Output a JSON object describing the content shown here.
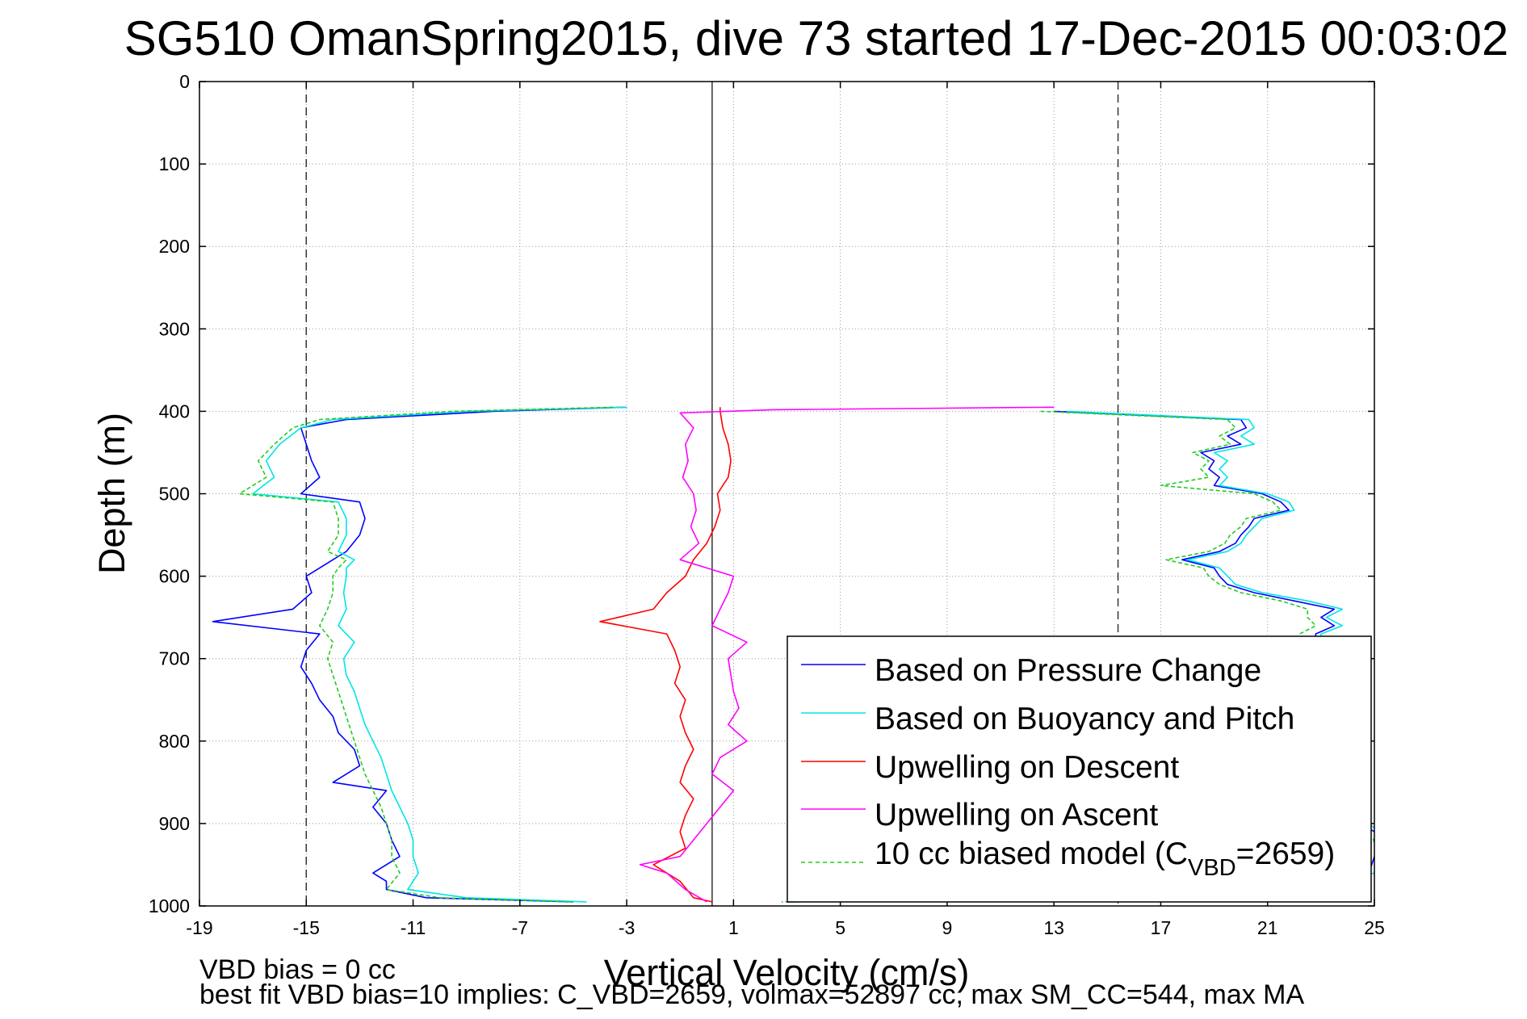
{
  "chart_data": {
    "type": "line",
    "title": "SG510 OmanSpring2015, dive 73 started 17-Dec-2015 00:03:02",
    "xlabel": "Vertical Velocity (cm/s)",
    "ylabel": "Depth (m)",
    "xlim": [
      -19,
      25
    ],
    "ylim": [
      0,
      1000
    ],
    "y_reversed": true,
    "grid": true,
    "x_ticks": [
      "-19",
      "-15",
      "-11",
      "-7",
      "-3",
      "1",
      "5",
      "9",
      "13",
      "17",
      "21",
      "25"
    ],
    "y_ticks": [
      "0",
      "100",
      "200",
      "300",
      "400",
      "500",
      "600",
      "700",
      "800",
      "900",
      "1000"
    ],
    "reference_lines": {
      "dashed_x": [
        -15,
        15.4
      ],
      "solid_x": [
        0.2
      ]
    },
    "legend_position": "bottom-right",
    "series": [
      {
        "name": "Based on Pressure Change",
        "color": "#0000ff",
        "descent": {
          "depth": [
            395,
            400,
            410,
            420,
            440,
            460,
            480,
            500,
            510,
            530,
            550,
            570,
            580,
            590,
            600,
            620,
            640,
            655,
            670,
            690,
            710,
            730,
            750,
            770,
            790,
            810,
            830,
            850,
            860,
            880,
            900,
            920,
            940,
            960,
            970,
            980,
            990,
            995
          ],
          "velocity": [
            -3.0,
            -8.0,
            -13.5,
            -15.2,
            -15.0,
            -14.8,
            -14.5,
            -15.2,
            -13.0,
            -12.8,
            -13.0,
            -13.5,
            -14.0,
            -14.5,
            -15.0,
            -14.8,
            -15.5,
            -18.5,
            -14.5,
            -15.0,
            -15.2,
            -14.8,
            -14.5,
            -14.0,
            -13.8,
            -13.2,
            -13.0,
            -14.0,
            -12.0,
            -12.5,
            -12.0,
            -11.8,
            -11.5,
            -12.5,
            -12.0,
            -12.0,
            -10.5,
            -5.0
          ]
        },
        "ascent": {
          "depth": [
            400,
            410,
            420,
            430,
            440,
            450,
            460,
            470,
            480,
            490,
            500,
            510,
            520,
            530,
            540,
            550,
            560,
            570,
            580,
            590,
            600,
            610,
            620,
            630,
            640,
            650,
            660,
            670,
            680,
            690,
            700,
            720,
            740,
            760,
            780,
            800,
            820,
            840,
            860,
            880,
            900,
            920,
            940,
            960,
            975,
            985,
            990,
            995
          ],
          "velocity": [
            13.0,
            20.0,
            20.2,
            19.5,
            20.0,
            18.5,
            19.0,
            18.8,
            19.2,
            19.0,
            20.8,
            21.5,
            21.8,
            20.5,
            20.3,
            20.0,
            19.8,
            19.2,
            17.8,
            19.0,
            19.2,
            19.5,
            20.5,
            22.0,
            23.5,
            23.0,
            23.5,
            22.8,
            22.8,
            23.0,
            22.5,
            22.2,
            22.0,
            21.9,
            21.8,
            22.0,
            22.2,
            22.5,
            23.2,
            23.5,
            24.5,
            25.5,
            25.0,
            24.8,
            23.0,
            19.0,
            12.0,
            3.0
          ]
        }
      },
      {
        "name": "Based on Buoyancy and Pitch",
        "color": "#00e5e5",
        "descent": {
          "depth": [
            395,
            400,
            410,
            420,
            440,
            460,
            480,
            500,
            510,
            530,
            550,
            570,
            580,
            590,
            600,
            620,
            640,
            660,
            680,
            700,
            720,
            740,
            760,
            780,
            800,
            820,
            840,
            860,
            880,
            900,
            920,
            940,
            960,
            980,
            990,
            995
          ],
          "velocity": [
            -3.0,
            -9.0,
            -14.0,
            -15.2,
            -16.0,
            -16.5,
            -16.2,
            -17.0,
            -13.8,
            -13.5,
            -13.5,
            -13.8,
            -13.2,
            -13.5,
            -13.5,
            -13.6,
            -13.5,
            -13.8,
            -13.2,
            -13.6,
            -13.5,
            -13.2,
            -13.0,
            -12.8,
            -12.5,
            -12.2,
            -12.0,
            -11.8,
            -11.5,
            -11.2,
            -11.0,
            -11.0,
            -10.8,
            -11.2,
            -9.0,
            -4.5
          ]
        },
        "ascent": {
          "depth": [
            400,
            410,
            420,
            430,
            440,
            450,
            460,
            470,
            480,
            490,
            500,
            510,
            520,
            530,
            540,
            550,
            560,
            570,
            580,
            590,
            600,
            610,
            620,
            630,
            640,
            650,
            660,
            670,
            680,
            690,
            700,
            720,
            740,
            760,
            780,
            800,
            820,
            840,
            860,
            880,
            900,
            920,
            940,
            960,
            975,
            985,
            990,
            995
          ],
          "velocity": [
            13.5,
            20.3,
            20.5,
            20.0,
            20.5,
            19.0,
            19.5,
            19.2,
            19.5,
            19.2,
            21.0,
            21.8,
            22.0,
            20.8,
            20.5,
            20.2,
            20.0,
            19.5,
            18.0,
            19.2,
            19.5,
            19.8,
            20.8,
            22.5,
            23.8,
            23.2,
            23.8,
            23.0,
            23.0,
            23.2,
            22.8,
            22.5,
            22.3,
            22.1,
            22.0,
            22.2,
            22.5,
            22.8,
            23.5,
            23.8,
            24.8,
            25.5,
            25.2,
            25.0,
            23.2,
            19.2,
            12.2,
            3.2
          ]
        }
      },
      {
        "name": "Upwelling on Descent",
        "color": "#ff0000",
        "descent": {
          "depth": [
            395,
            400,
            420,
            440,
            460,
            480,
            500,
            520,
            540,
            560,
            580,
            600,
            620,
            640,
            655,
            670,
            690,
            710,
            730,
            750,
            770,
            790,
            810,
            830,
            850,
            870,
            890,
            910,
            930,
            950,
            970,
            990,
            995
          ],
          "velocity": [
            0.5,
            0.5,
            0.6,
            0.8,
            0.9,
            0.8,
            0.4,
            0.5,
            0.3,
            0.0,
            -0.5,
            -0.8,
            -1.5,
            -2.0,
            -4.0,
            -1.5,
            -1.2,
            -1.0,
            -1.2,
            -0.8,
            -1.0,
            -0.8,
            -0.5,
            -0.8,
            -1.0,
            -0.5,
            -0.8,
            -1.0,
            -0.8,
            -2.0,
            -1.0,
            -0.5,
            0.2
          ]
        }
      },
      {
        "name": "Upwelling on Ascent",
        "color": "#ff00ff",
        "ascent": {
          "depth": [
            395,
            398,
            402,
            420,
            440,
            460,
            480,
            500,
            520,
            540,
            560,
            580,
            600,
            620,
            640,
            660,
            680,
            700,
            720,
            740,
            760,
            780,
            800,
            820,
            840,
            860,
            880,
            900,
            920,
            940,
            950,
            960,
            980,
            995
          ],
          "velocity": [
            13.0,
            2.5,
            -1.0,
            -0.5,
            -0.8,
            -0.7,
            -0.9,
            -0.5,
            -0.4,
            -0.6,
            -0.3,
            -1.0,
            1.0,
            0.8,
            0.5,
            0.2,
            1.5,
            0.8,
            0.9,
            1.0,
            1.2,
            0.8,
            1.5,
            0.5,
            0.2,
            1.0,
            0.5,
            0.0,
            -0.5,
            -1.0,
            -2.5,
            -1.5,
            -0.8,
            0.0
          ]
        }
      },
      {
        "name": "10 cc biased model (C_VBD=2659)",
        "color": "#22cc22",
        "descent": {
          "depth": [
            395,
            400,
            410,
            420,
            440,
            460,
            480,
            500,
            510,
            530,
            550,
            570,
            580,
            590,
            600,
            620,
            640,
            660,
            680,
            700,
            720,
            740,
            760,
            780,
            800,
            820,
            840,
            860,
            880,
            900,
            920,
            940,
            960,
            980,
            990,
            995
          ],
          "velocity": [
            -3.5,
            -9.5,
            -14.5,
            -15.5,
            -16.2,
            -16.8,
            -16.5,
            -17.5,
            -14.0,
            -13.8,
            -13.8,
            -14.2,
            -13.5,
            -13.8,
            -14.0,
            -14.0,
            -14.2,
            -14.5,
            -14.0,
            -14.2,
            -14.0,
            -13.8,
            -13.6,
            -13.4,
            -13.2,
            -13.0,
            -12.8,
            -12.5,
            -12.2,
            -12.0,
            -11.8,
            -11.8,
            -11.5,
            -12.0,
            -10.0,
            -5.0
          ]
        },
        "ascent": {
          "depth": [
            400,
            410,
            420,
            430,
            440,
            450,
            460,
            470,
            480,
            490,
            500,
            510,
            520,
            530,
            540,
            550,
            560,
            570,
            580,
            590,
            600,
            610,
            620,
            630,
            640,
            650,
            660,
            670,
            680,
            690,
            700,
            720,
            740,
            760,
            780,
            800,
            820,
            840,
            860,
            880,
            900,
            920,
            940,
            960,
            975,
            985,
            990,
            995
          ],
          "velocity": [
            12.5,
            19.5,
            19.8,
            19.2,
            19.6,
            18.2,
            18.8,
            18.5,
            18.8,
            17.0,
            20.5,
            21.2,
            21.5,
            20.2,
            20.0,
            19.6,
            19.4,
            18.8,
            17.2,
            18.6,
            18.8,
            19.2,
            20.0,
            21.5,
            22.5,
            22.5,
            22.8,
            22.2,
            22.2,
            22.5,
            22.0,
            21.8,
            21.6,
            21.5,
            21.4,
            21.6,
            21.8,
            22.0,
            22.8,
            23.0,
            24.0,
            25.0,
            24.5,
            24.2,
            22.5,
            18.5,
            11.5,
            2.8
          ]
        }
      }
    ]
  },
  "legend_labels": {
    "line1": "Based on Pressure Change",
    "line2": "Based on Buoyancy and Pitch",
    "line3": "Upwelling on Descent",
    "line4": "Upwelling on Ascent",
    "line5_prefix": "10 cc biased model (C",
    "line5_sub": "VBD",
    "line5_suffix": "=2659)"
  },
  "footer": {
    "line1": "VBD bias = 0 cc",
    "line2": "best fit VBD bias=10 implies: C_VBD=2659, volmax=52897 cc, max SM_CC=544, max MA"
  }
}
